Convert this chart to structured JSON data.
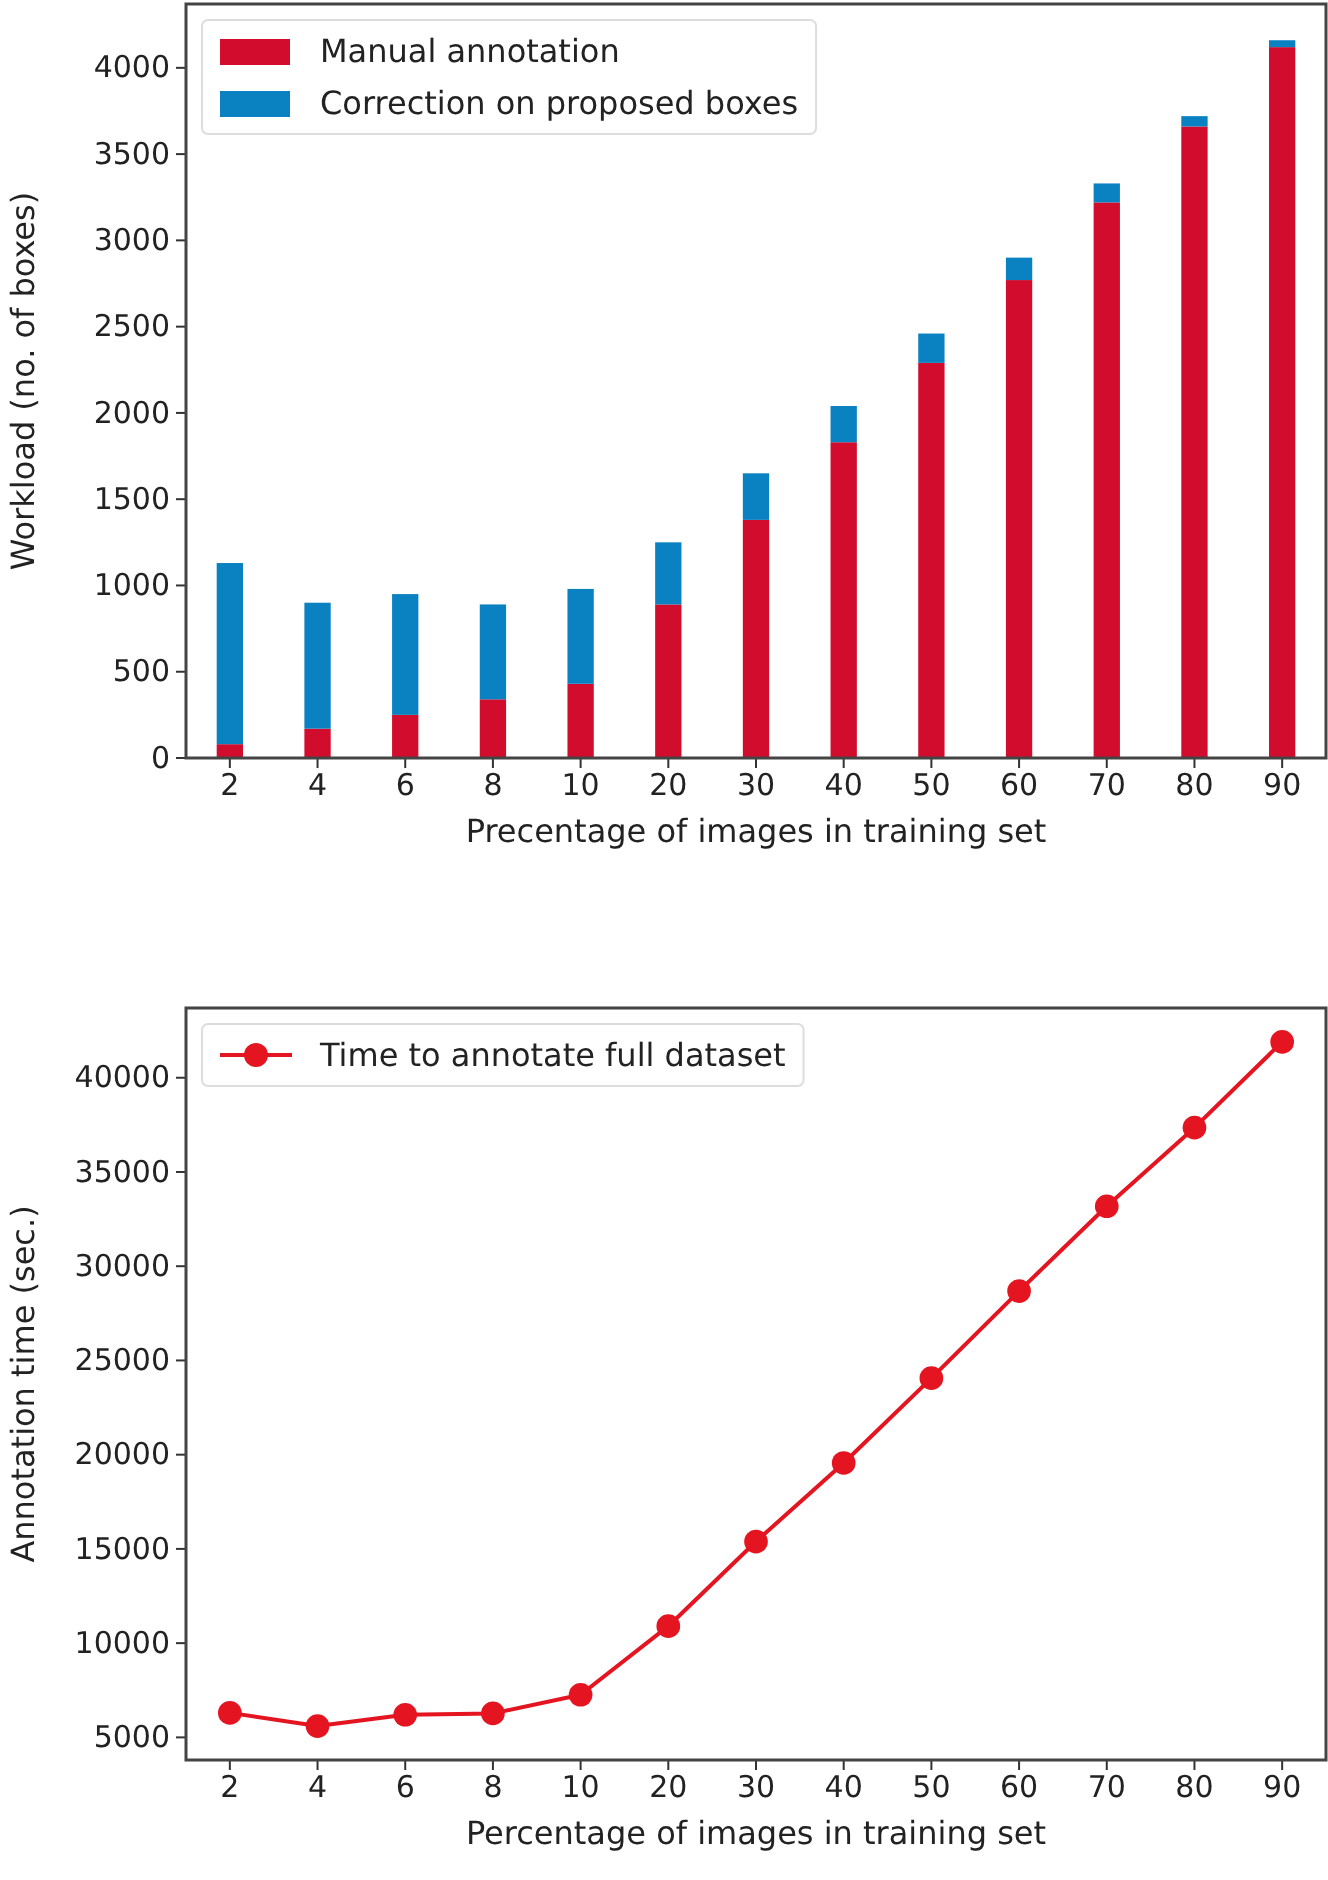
{
  "chart_data": [
    {
      "type": "bar",
      "stacked": true,
      "xlabel": "Precentage of images in training set",
      "ylabel": "Workload (no. of boxes)",
      "categories": [
        "2",
        "4",
        "6",
        "8",
        "10",
        "20",
        "30",
        "40",
        "50",
        "60",
        "70",
        "80",
        "90"
      ],
      "series": [
        {
          "name": "Manual annotation",
          "color": "#d20c2c",
          "values": [
            80,
            170,
            250,
            340,
            430,
            890,
            1380,
            1830,
            2290,
            2770,
            3220,
            3660,
            4120
          ]
        },
        {
          "name": "Correction on proposed boxes",
          "color": "#0a81c0",
          "values": [
            1050,
            730,
            700,
            550,
            550,
            360,
            270,
            210,
            170,
            130,
            110,
            60,
            40
          ]
        }
      ],
      "ylim": [
        0,
        4370
      ],
      "yticks": [
        0,
        500,
        1000,
        1500,
        2000,
        2500,
        3000,
        3500,
        4000
      ],
      "legend": "top left",
      "grid": false
    },
    {
      "type": "line",
      "xlabel": "Percentage of images in training set",
      "ylabel": "Annotation time (sec.)",
      "categories": [
        "2",
        "4",
        "6",
        "8",
        "10",
        "20",
        "30",
        "40",
        "50",
        "60",
        "70",
        "80",
        "90"
      ],
      "series": [
        {
          "name": "Time to annotate full dataset",
          "color": "#e41420",
          "values": [
            6300,
            5600,
            6200,
            6270,
            7260,
            10900,
            15390,
            19560,
            24060,
            28680,
            33180,
            37350,
            41900
          ]
        }
      ],
      "ylim": [
        3800,
        43700
      ],
      "yticks": [
        5000,
        10000,
        15000,
        20000,
        25000,
        30000,
        35000,
        40000
      ],
      "marker": "circle",
      "line_style": "solid",
      "legend": "top left",
      "grid": false
    }
  ]
}
